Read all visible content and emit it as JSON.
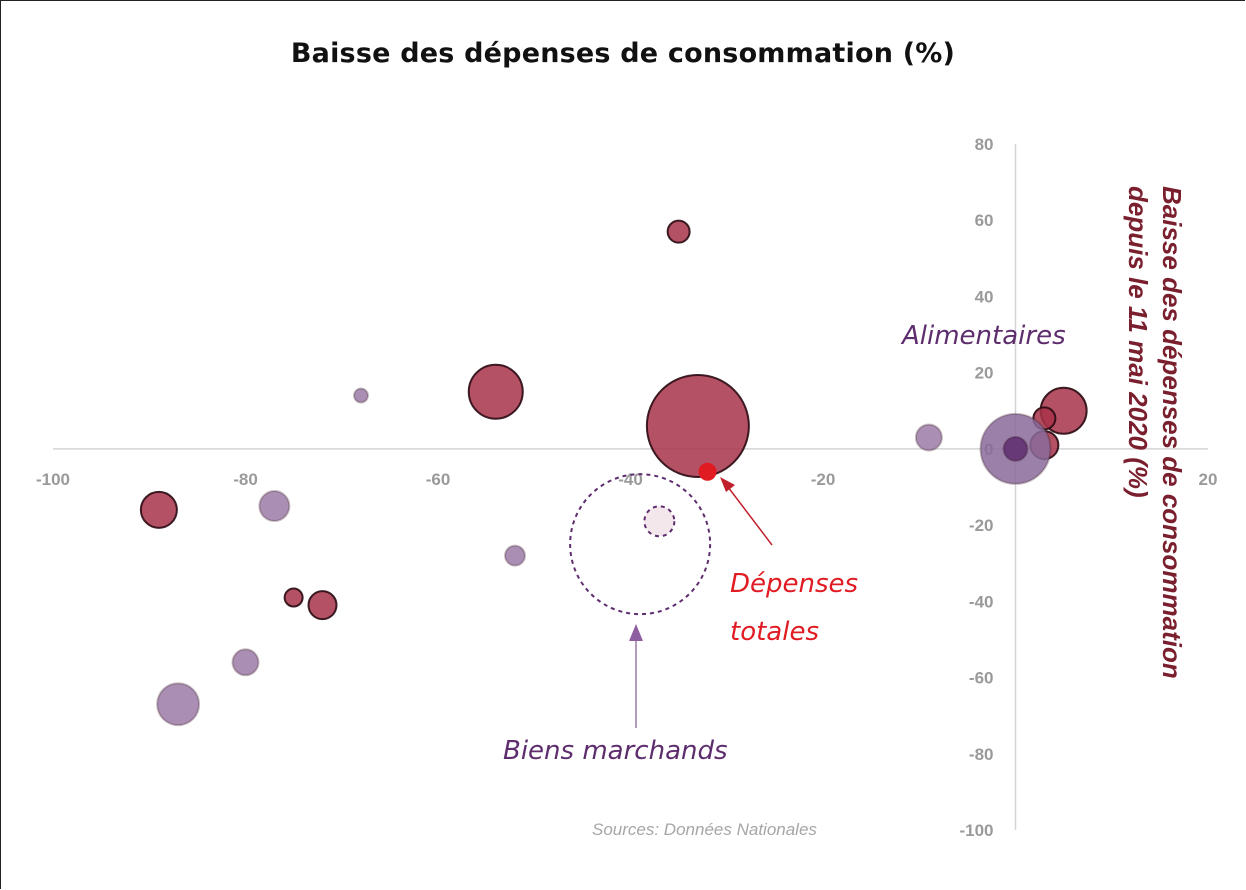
{
  "chart_data": {
    "type": "scatter",
    "title": "Baisse des dépenses de consommation (%)",
    "ylabel_lines": [
      "Baisse des dépenses de consommation",
      "depuis le 11 mai 2020 (%)"
    ],
    "xlim": [
      -100,
      20
    ],
    "ylim": [
      -100,
      80
    ],
    "x_ticks": [
      "-100",
      "-80",
      "-60",
      "-40",
      "-20",
      "0",
      "20"
    ],
    "y_ticks": [
      "80",
      "60",
      "40",
      "20",
      "0",
      "-20",
      "-40",
      "-60",
      "-80",
      "-100"
    ],
    "points": [
      {
        "x": -35,
        "y": 57,
        "size": 11,
        "color": "#a8334a"
      },
      {
        "x": -54,
        "y": 15,
        "size": 27,
        "color": "#a8334a"
      },
      {
        "x": -33,
        "y": 6,
        "size": 51,
        "color": "#a8334a"
      },
      {
        "x": -68,
        "y": 14,
        "size": 7,
        "color": "#9b7aa6"
      },
      {
        "x": -89,
        "y": -16,
        "size": 18,
        "color": "#a8334a"
      },
      {
        "x": -77,
        "y": -15,
        "size": 15,
        "color": "#9b7aa6"
      },
      {
        "x": -52,
        "y": -28,
        "size": 10,
        "color": "#9b7aa6"
      },
      {
        "x": -75,
        "y": -39,
        "size": 9,
        "color": "#a8334a"
      },
      {
        "x": -72,
        "y": -41,
        "size": 14,
        "color": "#a8334a"
      },
      {
        "x": -80,
        "y": -56,
        "size": 13,
        "color": "#9b7aa6"
      },
      {
        "x": -87,
        "y": -67,
        "size": 21,
        "color": "#9b7aa6"
      },
      {
        "x": -9,
        "y": 3,
        "size": 13,
        "color": "#9b7aa6"
      },
      {
        "x": 5,
        "y": 10,
        "size": 23,
        "color": "#a8334a"
      },
      {
        "x": 3,
        "y": 8,
        "size": 11,
        "color": "#a8334a"
      },
      {
        "x": 3,
        "y": 1,
        "size": 14,
        "color": "#a8334a"
      },
      {
        "x": 0,
        "y": 0,
        "size": 35,
        "color": "#8a6b9a"
      },
      {
        "x": 0,
        "y": 0,
        "size": 12,
        "color": "#5e2d6e"
      }
    ],
    "highlight_points": [
      {
        "label": "Dépenses totales",
        "x": -32,
        "y": -6,
        "size": 9,
        "color": "#e01b22"
      }
    ],
    "dashed_circles": [
      {
        "x": -39,
        "y": -25,
        "size": 70,
        "fill": "none"
      },
      {
        "x": -37,
        "y": -19,
        "size": 15,
        "fill": "#f3e7ec"
      }
    ],
    "annotations": {
      "alimentaires": "Alimentaires",
      "depenses_line1": "Dépenses",
      "depenses_line2": "totales",
      "biens_marchands": "Biens marchands"
    },
    "source": "Sources: Données Nationales",
    "colors": {
      "red": "#a8334a",
      "purple": "#9b7aa6",
      "highlight": "#e01b22",
      "annotation_purple": "#5e2d6e",
      "axis_label": "#7a1f2e"
    }
  }
}
